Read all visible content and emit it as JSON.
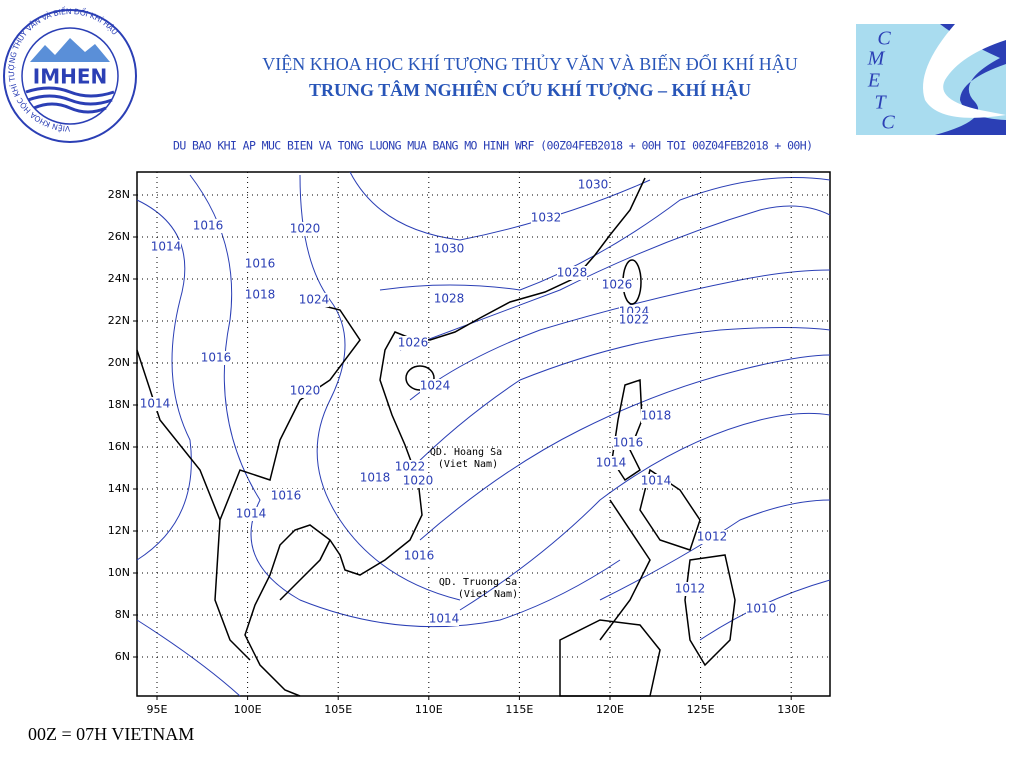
{
  "header": {
    "logo_left_text": "IMHEN",
    "logo_left_ring": "VIỆN KHOA HỌC KHÍ TƯỢNG THỦY VĂN VÀ BIẾN ĐỔI KHÍ HẬU",
    "institute": "VIỆN KHOA HỌC KHÍ TƯỢNG THỦY VĂN VÀ BIẾN ĐỔI KHÍ HẬU",
    "center": "TRUNG TÂM NGHIÊN CỨU KHÍ TƯỢNG – KHÍ HẬU",
    "logo_right_letters": [
      "C",
      "M",
      "E",
      "T",
      "C"
    ]
  },
  "map": {
    "title": "DU BAO KHI AP MUC BIEN VA TONG LUONG MUA BANG MO HINH WRF (00Z04FEB2018 + 00H TOI 00Z04FEB2018 + 00H)",
    "yticks": [
      "28N",
      "26N",
      "24N",
      "22N",
      "20N",
      "18N",
      "16N",
      "14N",
      "12N",
      "10N",
      "8N",
      "6N"
    ],
    "xticks": [
      "95E",
      "100E",
      "105E",
      "110E",
      "115E",
      "120E",
      "125E",
      "130E"
    ],
    "contour_labels": [
      "1030",
      "1032",
      "1030",
      "1028",
      "1026",
      "1024",
      "1022",
      "1028",
      "1026",
      "1024",
      "1020",
      "1016",
      "1014",
      "1016",
      "1018",
      "1024",
      "1016",
      "1020",
      "1014",
      "1018",
      "1016",
      "1014",
      "1014",
      "1022",
      "1018",
      "1020",
      "1016",
      "1014",
      "1016",
      "1012",
      "1012",
      "1010",
      "1014"
    ],
    "place_labels": [
      "QD. Hoang Sa",
      "(Viet Nam)",
      "QD. Truong Sa",
      "(Viet Nam)"
    ]
  },
  "footer": "00Z = 07H VIETNAM"
}
